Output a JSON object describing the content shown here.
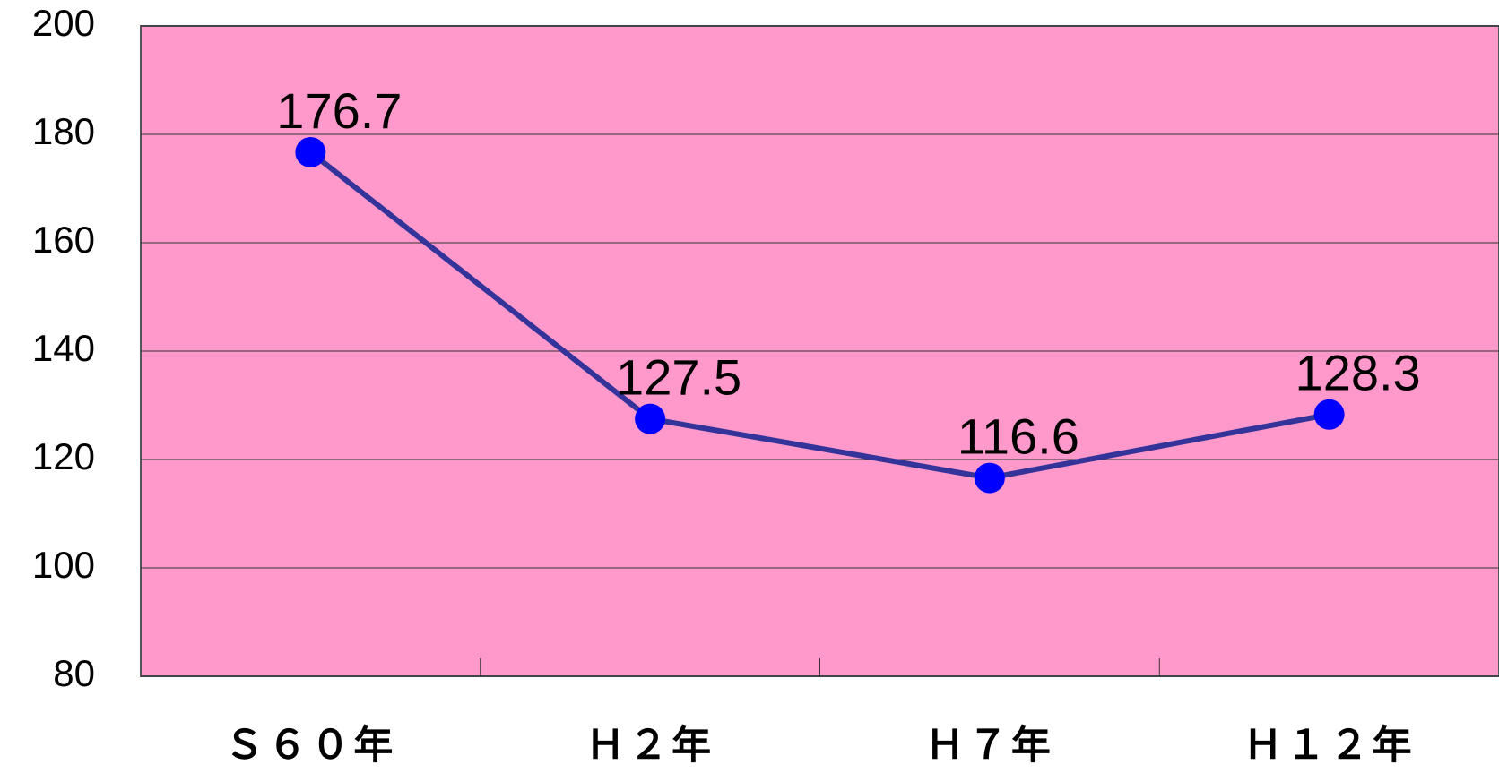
{
  "chart_data": {
    "type": "line",
    "categories": [
      "Ｓ６０年",
      "Ｈ２年",
      "Ｈ７年",
      "Ｈ１２年"
    ],
    "series": [
      {
        "values": [
          176.7,
          127.5,
          116.6,
          128.3
        ],
        "color": "#333399",
        "marker_color": "#0000ff"
      }
    ],
    "ylim": [
      80,
      200
    ],
    "yticks": [
      80,
      100,
      120,
      140,
      160,
      180,
      200
    ],
    "grid": true,
    "plot_background": "#ff99cc"
  }
}
